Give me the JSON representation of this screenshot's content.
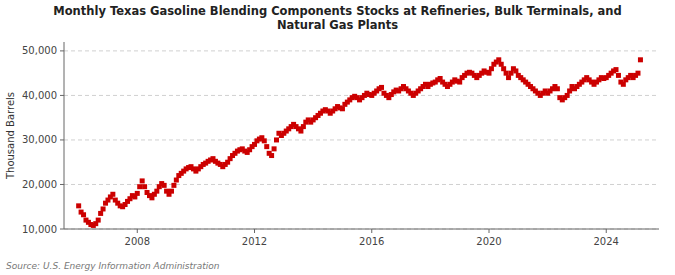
{
  "chart_data": {
    "type": "scatter",
    "title": "Monthly Texas Gasoline Blending Components Stocks at Refineries, Bulk Terminals, and\nNatural Gas Plants",
    "ylabel": "Thousand Barrels",
    "source": "Source: U.S. Energy Information Administration",
    "color": "#CC0000",
    "marker": "square",
    "grid": true,
    "xlim": [
      2005.5,
      2025.8
    ],
    "xticks": [
      2008,
      2012,
      2016,
      2020,
      2024
    ],
    "ylim": [
      10000,
      52000
    ],
    "yticks": [
      {
        "value": 10000,
        "label": "10,000"
      },
      {
        "value": 20000,
        "label": "20,000"
      },
      {
        "value": 30000,
        "label": "30,000"
      },
      {
        "value": 40000,
        "label": "40,000"
      },
      {
        "value": 50000,
        "label": "50,000"
      }
    ],
    "x": [
      2006.0,
      2006.083,
      2006.167,
      2006.25,
      2006.333,
      2006.417,
      2006.5,
      2006.583,
      2006.667,
      2006.75,
      2006.833,
      2006.917,
      2007.0,
      2007.083,
      2007.167,
      2007.25,
      2007.333,
      2007.417,
      2007.5,
      2007.583,
      2007.667,
      2007.75,
      2007.833,
      2007.917,
      2008.0,
      2008.083,
      2008.167,
      2008.25,
      2008.333,
      2008.417,
      2008.5,
      2008.583,
      2008.667,
      2008.75,
      2008.833,
      2008.917,
      2009.0,
      2009.083,
      2009.167,
      2009.25,
      2009.333,
      2009.417,
      2009.5,
      2009.583,
      2009.667,
      2009.75,
      2009.833,
      2009.917,
      2010.0,
      2010.083,
      2010.167,
      2010.25,
      2010.333,
      2010.417,
      2010.5,
      2010.583,
      2010.667,
      2010.75,
      2010.833,
      2010.917,
      2011.0,
      2011.083,
      2011.167,
      2011.25,
      2011.333,
      2011.417,
      2011.5,
      2011.583,
      2011.667,
      2011.75,
      2011.833,
      2011.917,
      2012.0,
      2012.083,
      2012.167,
      2012.25,
      2012.333,
      2012.417,
      2012.5,
      2012.583,
      2012.667,
      2012.75,
      2012.833,
      2012.917,
      2013.0,
      2013.083,
      2013.167,
      2013.25,
      2013.333,
      2013.417,
      2013.5,
      2013.583,
      2013.667,
      2013.75,
      2013.833,
      2013.917,
      2014.0,
      2014.083,
      2014.167,
      2014.25,
      2014.333,
      2014.417,
      2014.5,
      2014.583,
      2014.667,
      2014.75,
      2014.833,
      2014.917,
      2015.0,
      2015.083,
      2015.167,
      2015.25,
      2015.333,
      2015.417,
      2015.5,
      2015.583,
      2015.667,
      2015.75,
      2015.833,
      2015.917,
      2016.0,
      2016.083,
      2016.167,
      2016.25,
      2016.333,
      2016.417,
      2016.5,
      2016.583,
      2016.667,
      2016.75,
      2016.833,
      2016.917,
      2017.0,
      2017.083,
      2017.167,
      2017.25,
      2017.333,
      2017.417,
      2017.5,
      2017.583,
      2017.667,
      2017.75,
      2017.833,
      2017.917,
      2018.0,
      2018.083,
      2018.167,
      2018.25,
      2018.333,
      2018.417,
      2018.5,
      2018.583,
      2018.667,
      2018.75,
      2018.833,
      2018.917,
      2019.0,
      2019.083,
      2019.167,
      2019.25,
      2019.333,
      2019.417,
      2019.5,
      2019.583,
      2019.667,
      2019.75,
      2019.833,
      2019.917,
      2020.0,
      2020.083,
      2020.167,
      2020.25,
      2020.333,
      2020.417,
      2020.5,
      2020.583,
      2020.667,
      2020.75,
      2020.833,
      2020.917,
      2021.0,
      2021.083,
      2021.167,
      2021.25,
      2021.333,
      2021.417,
      2021.5,
      2021.583,
      2021.667,
      2021.75,
      2021.833,
      2021.917,
      2022.0,
      2022.083,
      2022.167,
      2022.25,
      2022.333,
      2022.417,
      2022.5,
      2022.583,
      2022.667,
      2022.75,
      2022.833,
      2022.917,
      2023.0,
      2023.083,
      2023.167,
      2023.25,
      2023.333,
      2023.417,
      2023.5,
      2023.583,
      2023.667,
      2023.75,
      2023.833,
      2023.917,
      2024.0,
      2024.083,
      2024.167,
      2024.25,
      2024.333,
      2024.417,
      2024.5,
      2024.583,
      2024.667,
      2024.75,
      2024.833,
      2024.917,
      2025.0,
      2025.083,
      2025.167
    ],
    "values": [
      15200,
      13800,
      13200,
      12000,
      11500,
      11000,
      10800,
      11200,
      12000,
      13500,
      14500,
      15800,
      16500,
      17200,
      17800,
      16500,
      15800,
      15200,
      15000,
      15500,
      16200,
      16800,
      17500,
      17200,
      18000,
      19500,
      20800,
      19500,
      18200,
      17500,
      17000,
      17800,
      18500,
      19500,
      20200,
      19800,
      18500,
      17800,
      18500,
      19800,
      21000,
      22000,
      22500,
      23000,
      23500,
      23800,
      24000,
      23500,
      23000,
      23500,
      24000,
      24500,
      24800,
      25200,
      25500,
      25800,
      25200,
      24800,
      24500,
      24000,
      24500,
      25000,
      25800,
      26500,
      27000,
      27500,
      27800,
      28000,
      27500,
      27200,
      27800,
      28500,
      29000,
      29800,
      30200,
      30500,
      29800,
      28500,
      27000,
      26500,
      28000,
      30000,
      31500,
      31000,
      31500,
      32000,
      32500,
      33000,
      33500,
      33000,
      32500,
      32000,
      33000,
      34000,
      34500,
      34000,
      34500,
      35000,
      35500,
      36000,
      36500,
      36800,
      36500,
      36000,
      36500,
      37000,
      37500,
      37200,
      37000,
      38000,
      38500,
      39000,
      39500,
      39800,
      39500,
      39000,
      39500,
      40000,
      40500,
      40200,
      40000,
      40500,
      41000,
      41500,
      41800,
      40500,
      40000,
      39500,
      40200,
      40800,
      41200,
      41000,
      41500,
      42000,
      41500,
      41000,
      40500,
      40000,
      40500,
      41000,
      41500,
      42000,
      42500,
      42000,
      42500,
      42800,
      43000,
      43500,
      43800,
      43000,
      42500,
      42000,
      42500,
      43000,
      43500,
      43200,
      43000,
      44000,
      44500,
      45000,
      45200,
      45000,
      44500,
      44000,
      44500,
      45000,
      45500,
      45200,
      45000,
      46000,
      47000,
      47500,
      48000,
      47000,
      46000,
      45000,
      44000,
      45000,
      46000,
      45500,
      44500,
      44000,
      43500,
      43000,
      42500,
      42000,
      41500,
      41000,
      40500,
      40000,
      40500,
      41000,
      40500,
      41000,
      41500,
      42000,
      41500,
      39500,
      39000,
      39500,
      40000,
      41000,
      42000,
      41500,
      42000,
      42500,
      43000,
      43500,
      44000,
      43500,
      43000,
      42500,
      43000,
      43500,
      44000,
      43800,
      44000,
      44500,
      45000,
      45500,
      45800,
      44500,
      43000,
      42500,
      43500,
      44000,
      44500,
      44000,
      44500,
      45000,
      48000
    ]
  }
}
